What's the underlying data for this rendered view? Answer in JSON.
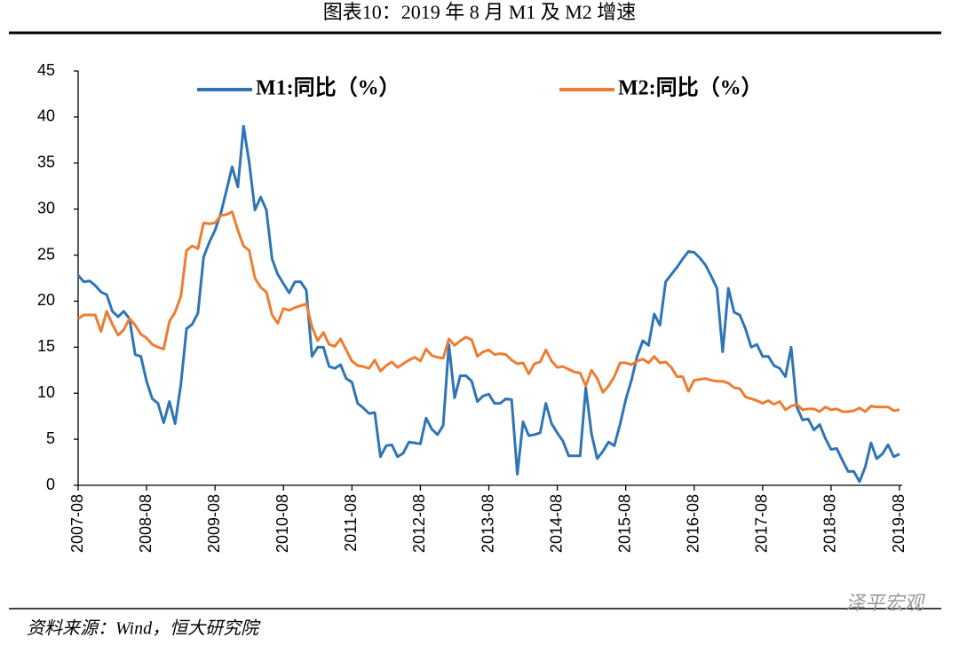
{
  "chart_data": {
    "type": "line",
    "title": "图表10：2019 年 8 月 M1 及 M2 增速",
    "source": "资料来源：Wind，恒大研究院",
    "watermark": "泽平宏观",
    "categories": [
      "2007-08",
      null,
      null,
      null,
      null,
      null,
      null,
      null,
      null,
      null,
      null,
      null,
      "2008-08",
      null,
      null,
      null,
      null,
      null,
      null,
      null,
      null,
      null,
      null,
      null,
      "2009-08",
      null,
      null,
      null,
      null,
      null,
      null,
      null,
      null,
      null,
      null,
      null,
      "2010-08",
      null,
      null,
      null,
      null,
      null,
      null,
      null,
      null,
      null,
      null,
      null,
      "2011-08",
      null,
      null,
      null,
      null,
      null,
      null,
      null,
      null,
      null,
      null,
      null,
      "2012-08",
      null,
      null,
      null,
      null,
      null,
      null,
      null,
      null,
      null,
      null,
      null,
      "2013-08",
      null,
      null,
      null,
      null,
      null,
      null,
      null,
      null,
      null,
      null,
      null,
      "2014-08",
      null,
      null,
      null,
      null,
      null,
      null,
      null,
      null,
      null,
      null,
      null,
      "2015-08",
      null,
      null,
      null,
      null,
      null,
      null,
      null,
      null,
      null,
      null,
      null,
      "2016-08",
      null,
      null,
      null,
      null,
      null,
      null,
      null,
      null,
      null,
      null,
      null,
      "2017-08",
      null,
      null,
      null,
      null,
      null,
      null,
      null,
      null,
      null,
      null,
      null,
      "2018-08",
      null,
      null,
      null,
      null,
      null,
      null,
      null,
      null,
      null,
      null,
      null,
      "2019-08"
    ],
    "series": [
      {
        "name": "M1:同比（%）",
        "color": "#2e75b6",
        "values": [
          22.8,
          22.1,
          22.2,
          21.7,
          21.0,
          20.7,
          18.9,
          18.3,
          18.9,
          18.1,
          14.2,
          14.0,
          11.3,
          9.4,
          8.9,
          6.8,
          9.1,
          6.7,
          10.9,
          17.0,
          17.5,
          18.7,
          24.8,
          26.4,
          27.7,
          29.5,
          32.0,
          34.6,
          32.4,
          39.0,
          35.0,
          29.9,
          31.3,
          29.9,
          24.6,
          22.9,
          21.9,
          20.9,
          22.1,
          22.1,
          21.2,
          14.0,
          15.0,
          15.0,
          12.9,
          12.7,
          13.1,
          11.6,
          11.2,
          8.9,
          8.4,
          7.8,
          7.9,
          3.1,
          4.3,
          4.4,
          3.1,
          3.5,
          4.7,
          4.6,
          4.5,
          7.3,
          6.1,
          5.5,
          6.5,
          15.3,
          9.5,
          11.9,
          11.9,
          11.3,
          9.1,
          9.7,
          9.9,
          8.9,
          8.9,
          9.4,
          9.3,
          1.2,
          6.9,
          5.4,
          5.5,
          5.7,
          8.9,
          6.7,
          5.7,
          4.8,
          3.2,
          3.2,
          3.2,
          10.6,
          5.6,
          2.9,
          3.7,
          4.7,
          4.3,
          6.6,
          9.3,
          11.4,
          14.0,
          15.7,
          15.2,
          18.6,
          17.4,
          22.1,
          22.9,
          23.7,
          24.6,
          25.4,
          25.3,
          24.7,
          23.9,
          22.7,
          21.4,
          14.5,
          21.4,
          18.8,
          18.5,
          17.0,
          15.0,
          15.3,
          14.0,
          14.0,
          13.0,
          12.7,
          11.8,
          15.0,
          8.5,
          7.1,
          7.2,
          6.0,
          6.6,
          5.1,
          3.9,
          4.0,
          2.7,
          1.5,
          1.5,
          0.4,
          2.0,
          4.6,
          2.9,
          3.4,
          4.4,
          3.1,
          3.4
        ]
      },
      {
        "name": "M2:同比（%）",
        "color": "#ed7d31",
        "values": [
          18.1,
          18.5,
          18.5,
          18.5,
          16.7,
          18.9,
          17.5,
          16.3,
          16.9,
          18.1,
          17.4,
          16.4,
          16.0,
          15.3,
          15.0,
          14.8,
          17.8,
          18.8,
          20.5,
          25.5,
          26.0,
          25.7,
          28.5,
          28.4,
          28.5,
          29.3,
          29.4,
          29.7,
          27.7,
          26.0,
          25.5,
          22.5,
          21.5,
          21.0,
          18.5,
          17.6,
          19.2,
          19.0,
          19.3,
          19.5,
          19.7,
          17.2,
          15.7,
          16.6,
          15.3,
          15.1,
          15.9,
          14.7,
          13.5,
          13.0,
          12.9,
          12.7,
          13.6,
          12.4,
          13.0,
          13.4,
          12.8,
          13.2,
          13.6,
          13.9,
          13.5,
          14.8,
          14.1,
          13.9,
          13.8,
          15.9,
          15.2,
          15.7,
          16.1,
          15.8,
          14.0,
          14.5,
          14.7,
          14.2,
          14.3,
          14.2,
          13.6,
          13.2,
          13.3,
          12.1,
          13.2,
          13.4,
          14.7,
          13.5,
          12.8,
          12.9,
          12.6,
          12.3,
          12.2,
          10.8,
          12.5,
          11.6,
          10.1,
          10.8,
          11.8,
          13.3,
          13.3,
          13.1,
          13.5,
          13.7,
          13.3,
          14.0,
          13.3,
          13.4,
          12.8,
          11.8,
          11.8,
          10.2,
          11.4,
          11.5,
          11.6,
          11.4,
          11.3,
          11.3,
          11.1,
          10.6,
          10.5,
          9.6,
          9.4,
          9.2,
          8.9,
          9.2,
          8.8,
          9.1,
          8.2,
          8.6,
          8.8,
          8.2,
          8.3,
          8.3,
          8.0,
          8.5,
          8.2,
          8.3,
          8.0,
          8.0,
          8.1,
          8.4,
          8.0,
          8.6,
          8.5,
          8.5,
          8.5,
          8.1,
          8.2
        ]
      }
    ],
    "ylim": [
      0,
      45
    ],
    "yticks": [
      0,
      5,
      10,
      15,
      20,
      25,
      30,
      35,
      40,
      45
    ]
  }
}
